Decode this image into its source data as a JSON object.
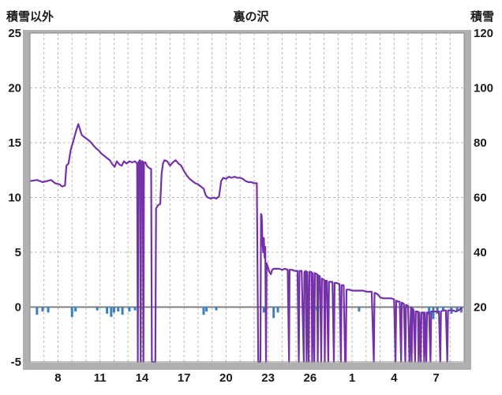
{
  "header": {
    "left_axis_title": "積雪以外",
    "chart_title": "裏の沢",
    "right_axis_title": "積雪"
  },
  "chart_data": {
    "type": "line",
    "title": "裏の沢",
    "colors": {
      "line": "#7432a8",
      "bar": "#3a7fc1",
      "grid": "#b8b8b8",
      "zero": "#808080",
      "frame": "#b0b0b0",
      "border": "#8a8a8a",
      "text": "#1a1a1a"
    },
    "left_axis": {
      "label": "積雪以外",
      "min": -5,
      "max": 25,
      "ticks": [
        25,
        20,
        15,
        10,
        5,
        0,
        -5
      ]
    },
    "right_axis": {
      "label": "積雪",
      "min": 0,
      "max": 120,
      "ticks": [
        120,
        100,
        80,
        60,
        40,
        20
      ]
    },
    "x_axis": {
      "domain": [
        0,
        31
      ],
      "tick_positions": [
        2,
        5,
        8,
        11,
        14,
        17,
        20,
        23,
        26,
        29
      ],
      "tick_labels": [
        "8",
        "11",
        "14",
        "17",
        "20",
        "23",
        "26",
        "1",
        "4",
        "7"
      ]
    },
    "grid": {
      "vertical_every": 1,
      "horizontal_values": [
        20,
        15,
        10,
        5,
        -5
      ],
      "style": "dashed"
    },
    "series": [
      {
        "name": "snow-depth-line",
        "type": "line",
        "color": "#7432a8",
        "points": [
          [
            0,
            11.5
          ],
          [
            0.5,
            11.6
          ],
          [
            0.9,
            11.4
          ],
          [
            1.2,
            11.5
          ],
          [
            1.5,
            11.6
          ],
          [
            1.8,
            11.3
          ],
          [
            2.1,
            11.2
          ],
          [
            2.3,
            11.0
          ],
          [
            2.5,
            11.1
          ],
          [
            2.6,
            12.9
          ],
          [
            2.75,
            13.1
          ],
          [
            2.9,
            14.3
          ],
          [
            3.1,
            15.2
          ],
          [
            3.3,
            16.1
          ],
          [
            3.45,
            16.7
          ],
          [
            3.6,
            16.1
          ],
          [
            3.7,
            15.7
          ],
          [
            3.9,
            15.5
          ],
          [
            4.1,
            15.3
          ],
          [
            4.3,
            15.1
          ],
          [
            4.5,
            14.8
          ],
          [
            4.7,
            14.5
          ],
          [
            4.9,
            14.3
          ],
          [
            5.1,
            14.0
          ],
          [
            5.3,
            13.8
          ],
          [
            5.5,
            13.6
          ],
          [
            5.7,
            13.4
          ],
          [
            5.9,
            13.0
          ],
          [
            6.05,
            12.8
          ],
          [
            6.2,
            13.3
          ],
          [
            6.4,
            13.0
          ],
          [
            6.55,
            12.9
          ],
          [
            6.7,
            13.3
          ],
          [
            6.9,
            13.1
          ],
          [
            7.1,
            13.3
          ],
          [
            7.3,
            13.2
          ],
          [
            7.5,
            13.3
          ],
          [
            7.65,
            13.1
          ],
          [
            7.7,
            -5
          ],
          [
            7.74,
            13.2
          ],
          [
            7.85,
            13.4
          ],
          [
            7.9,
            -5
          ],
          [
            7.94,
            13.3
          ],
          [
            8.05,
            13.3
          ],
          [
            8.1,
            -5
          ],
          [
            8.14,
            13.2
          ],
          [
            8.25,
            13.2
          ],
          [
            8.35,
            12.9
          ],
          [
            8.5,
            12.7
          ],
          [
            8.65,
            12.6
          ],
          [
            8.7,
            -5
          ],
          [
            8.95,
            -5
          ],
          [
            9.0,
            9.0
          ],
          [
            9.15,
            9.3
          ],
          [
            9.3,
            9.4
          ],
          [
            9.4,
            12.2
          ],
          [
            9.5,
            13.1
          ],
          [
            9.6,
            13.4
          ],
          [
            9.8,
            13.3
          ],
          [
            10.0,
            12.9
          ],
          [
            10.2,
            13.2
          ],
          [
            10.4,
            13.4
          ],
          [
            10.6,
            13.1
          ],
          [
            10.8,
            12.9
          ],
          [
            11.0,
            12.4
          ],
          [
            11.2,
            12.0
          ],
          [
            11.4,
            11.7
          ],
          [
            11.6,
            11.5
          ],
          [
            11.8,
            11.3
          ],
          [
            12.0,
            11.2
          ],
          [
            12.2,
            11.0
          ],
          [
            12.4,
            10.8
          ],
          [
            12.55,
            10.2
          ],
          [
            12.7,
            10.0
          ],
          [
            12.9,
            9.9
          ],
          [
            13.1,
            10.0
          ],
          [
            13.3,
            9.9
          ],
          [
            13.5,
            10.1
          ],
          [
            13.65,
            11.5
          ],
          [
            13.8,
            11.8
          ],
          [
            14.0,
            11.7
          ],
          [
            14.2,
            11.9
          ],
          [
            14.4,
            11.8
          ],
          [
            14.6,
            11.9
          ],
          [
            14.8,
            11.8
          ],
          [
            15.0,
            11.8
          ],
          [
            15.2,
            11.7
          ],
          [
            15.4,
            11.5
          ],
          [
            15.6,
            11.4
          ],
          [
            15.8,
            11.4
          ],
          [
            16.0,
            11.3
          ],
          [
            16.2,
            11.3
          ],
          [
            16.3,
            -5
          ],
          [
            16.45,
            -5
          ],
          [
            16.5,
            8.5
          ],
          [
            16.55,
            8.3
          ],
          [
            16.6,
            6.0
          ],
          [
            16.65,
            5.0
          ],
          [
            16.7,
            6.3
          ],
          [
            16.75,
            4.5
          ],
          [
            16.8,
            5.5
          ],
          [
            16.85,
            -5
          ],
          [
            16.9,
            4.0
          ],
          [
            17.0,
            3.6
          ],
          [
            17.1,
            3.2
          ],
          [
            17.2,
            3.0
          ],
          [
            17.3,
            3.4
          ],
          [
            17.4,
            3.5
          ],
          [
            17.6,
            3.5
          ],
          [
            17.8,
            3.5
          ],
          [
            18.0,
            3.4
          ],
          [
            18.2,
            3.5
          ],
          [
            18.4,
            3.4
          ],
          [
            18.5,
            -5
          ],
          [
            18.54,
            3.4
          ],
          [
            18.7,
            3.4
          ],
          [
            18.9,
            3.3
          ],
          [
            19.1,
            3.3
          ],
          [
            19.2,
            -5
          ],
          [
            19.24,
            3.3
          ],
          [
            19.4,
            3.3
          ],
          [
            19.55,
            -5
          ],
          [
            19.59,
            3.2
          ],
          [
            19.7,
            3.3
          ],
          [
            19.75,
            -5
          ],
          [
            19.8,
            3.2
          ],
          [
            19.9,
            -5
          ],
          [
            19.95,
            3.2
          ],
          [
            20.1,
            3.2
          ],
          [
            20.15,
            -5
          ],
          [
            20.2,
            3.1
          ],
          [
            20.3,
            -5
          ],
          [
            20.35,
            3.1
          ],
          [
            20.5,
            3.0
          ],
          [
            20.55,
            -5
          ],
          [
            20.6,
            2.9
          ],
          [
            20.7,
            2.8
          ],
          [
            20.8,
            -5
          ],
          [
            20.85,
            2.6
          ],
          [
            21.0,
            2.5
          ],
          [
            21.05,
            -5
          ],
          [
            21.1,
            2.4
          ],
          [
            21.2,
            2.4
          ],
          [
            21.3,
            -5
          ],
          [
            21.35,
            2.3
          ],
          [
            21.5,
            2.3
          ],
          [
            21.6,
            2.3
          ],
          [
            21.7,
            -5
          ],
          [
            21.75,
            2.2
          ],
          [
            21.9,
            2.2
          ],
          [
            22.1,
            2.1
          ],
          [
            22.2,
            -5
          ],
          [
            22.25,
            2.0
          ],
          [
            22.4,
            2.0
          ],
          [
            22.5,
            -5
          ],
          [
            22.55,
            -5
          ],
          [
            22.6,
            1.6
          ],
          [
            22.8,
            1.6
          ],
          [
            23.0,
            1.5
          ],
          [
            23.2,
            1.5
          ],
          [
            23.4,
            1.5
          ],
          [
            23.6,
            1.5
          ],
          [
            23.8,
            1.5
          ],
          [
            24.0,
            1.4
          ],
          [
            24.2,
            1.4
          ],
          [
            24.4,
            1.4
          ],
          [
            24.55,
            -5
          ],
          [
            24.6,
            1.3
          ],
          [
            24.8,
            1.2
          ],
          [
            25.0,
            0.9
          ],
          [
            25.2,
            0.8
          ],
          [
            25.4,
            0.8
          ],
          [
            25.6,
            0.8
          ],
          [
            25.8,
            0.8
          ],
          [
            26.0,
            0.7
          ],
          [
            26.1,
            -5
          ],
          [
            26.15,
            0.6
          ],
          [
            26.3,
            0.5
          ],
          [
            26.4,
            0.5
          ],
          [
            26.5,
            -5
          ],
          [
            26.55,
            0.4
          ],
          [
            26.7,
            0.3
          ],
          [
            26.8,
            -5
          ],
          [
            26.85,
            0.2
          ],
          [
            27.0,
            0.1
          ],
          [
            27.1,
            -5
          ],
          [
            27.2,
            0.0
          ],
          [
            27.25,
            -5
          ],
          [
            27.3,
            -0.1
          ],
          [
            27.4,
            -0.3
          ],
          [
            27.5,
            -5
          ],
          [
            27.55,
            -0.4
          ],
          [
            27.7,
            -0.4
          ],
          [
            27.75,
            -5
          ],
          [
            27.8,
            -0.5
          ],
          [
            27.9,
            -5
          ],
          [
            27.95,
            -0.5
          ],
          [
            28.1,
            -0.5
          ],
          [
            28.15,
            -5
          ],
          [
            28.2,
            -0.5
          ],
          [
            28.3,
            -5
          ],
          [
            28.35,
            -0.5
          ],
          [
            28.5,
            -0.5
          ],
          [
            28.6,
            -5
          ],
          [
            28.65,
            -0.4
          ],
          [
            28.8,
            -0.4
          ],
          [
            28.9,
            -0.4
          ],
          [
            29.0,
            -0.4
          ],
          [
            29.2,
            -0.4
          ],
          [
            29.3,
            -5
          ],
          [
            29.35,
            -0.4
          ],
          [
            29.5,
            -0.3
          ],
          [
            29.7,
            -0.3
          ],
          [
            29.8,
            -5
          ],
          [
            29.85,
            -0.3
          ],
          [
            30.0,
            -0.3
          ],
          [
            30.2,
            -0.3
          ],
          [
            30.4,
            -0.4
          ],
          [
            30.6,
            -0.3
          ],
          [
            30.7,
            -0.2
          ],
          [
            30.8,
            -0.1
          ]
        ]
      },
      {
        "name": "precipitation-bars",
        "type": "bar",
        "color": "#3a7fc1",
        "points": [
          [
            0.5,
            0.7
          ],
          [
            0.9,
            0.4
          ],
          [
            1.3,
            0.5
          ],
          [
            3.0,
            0.9
          ],
          [
            3.25,
            0.4
          ],
          [
            4.8,
            0.3
          ],
          [
            5.5,
            0.6
          ],
          [
            5.8,
            0.9
          ],
          [
            6.0,
            0.5
          ],
          [
            6.3,
            0.4
          ],
          [
            6.6,
            0.7
          ],
          [
            7.1,
            0.4
          ],
          [
            7.5,
            0.3
          ],
          [
            12.4,
            0.7
          ],
          [
            12.6,
            0.4
          ],
          [
            13.3,
            0.3
          ],
          [
            16.7,
            0.5
          ],
          [
            17.4,
            1.0
          ],
          [
            17.7,
            0.5
          ],
          [
            20.5,
            0.3
          ],
          [
            23.5,
            0.4
          ],
          [
            26.8,
            0.5
          ],
          [
            28.5,
            0.7
          ],
          [
            28.8,
            1.1
          ],
          [
            29.1,
            0.6
          ],
          [
            29.5,
            0.4
          ],
          [
            30.1,
            0.6
          ],
          [
            30.5,
            0.3
          ],
          [
            30.8,
            0.5
          ]
        ]
      }
    ]
  }
}
